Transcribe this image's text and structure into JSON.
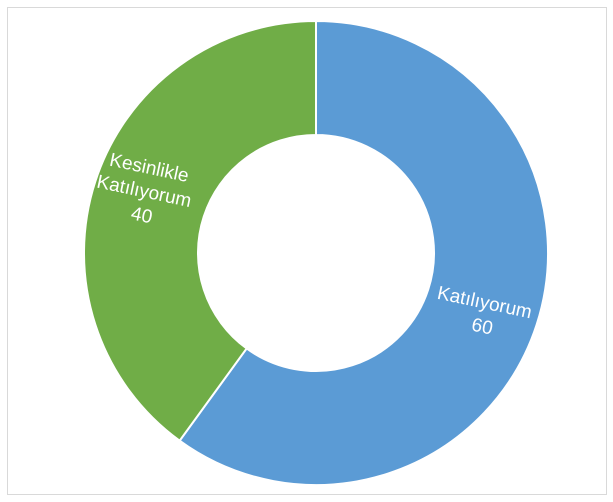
{
  "chart_data": {
    "type": "pie",
    "variant": "donut",
    "title": "",
    "slices": [
      {
        "label": "Katılıyorum",
        "value": 60,
        "color": "#5b9bd5"
      },
      {
        "label": "Kesinlikle Katılıyorum",
        "value": 40,
        "color": "#70ad47"
      }
    ],
    "data_labels": [
      {
        "lines": [
          "Katılıyorum"
        ],
        "value": "60"
      },
      {
        "lines": [
          "Kesinlikle",
          "Katılıyorum"
        ],
        "value": "40"
      }
    ],
    "legend": "none",
    "start_angle": "12 o'clock",
    "direction": "clockwise"
  }
}
